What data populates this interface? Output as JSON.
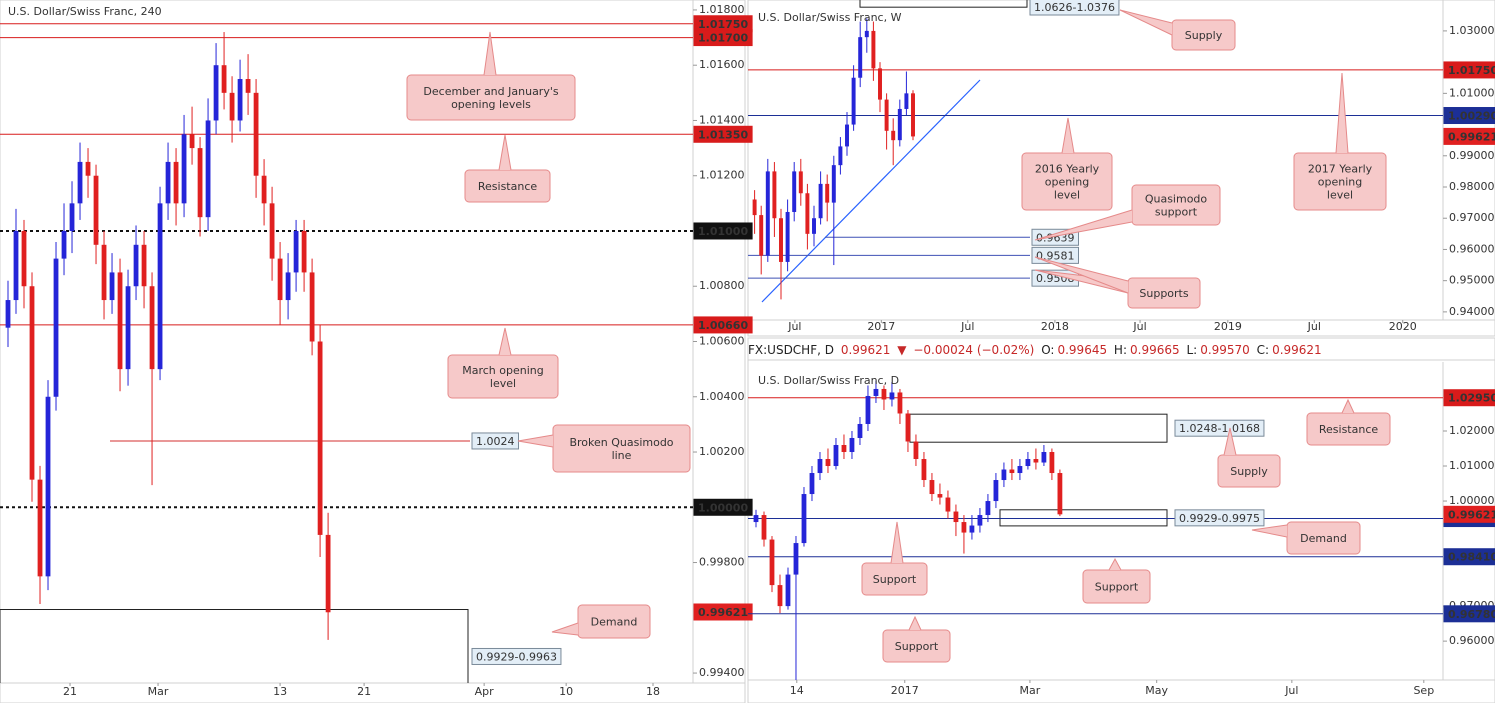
{
  "chart_data": [
    {
      "type": "candlestick",
      "title": "U.S. Dollar/Swiss Franc, 240",
      "up_color": "#2525d8",
      "down_color": "#e02020",
      "xlim": [
        0,
        86.6
      ],
      "xticks": [
        {
          "value": 8.75,
          "label": "21"
        },
        {
          "value": 19.75,
          "label": "Mar"
        },
        {
          "value": 35,
          "label": "13"
        },
        {
          "value": 45.5,
          "label": "21"
        },
        {
          "value": 60.5,
          "label": "Apr"
        },
        {
          "value": 70.75,
          "label": "10"
        },
        {
          "value": 81.6,
          "label": "18"
        }
      ],
      "ylim": [
        0.99364,
        1.01836
      ],
      "yticks": [
        {
          "value": 1.018,
          "label": "1.01800"
        },
        {
          "value": 1.016,
          "label": "1.01600"
        },
        {
          "value": 1.014,
          "label": "1.01400"
        },
        {
          "value": 1.012,
          "label": "1.01200"
        },
        {
          "value": 1.008,
          "label": "1.00800"
        },
        {
          "value": 1.006,
          "label": "1.00600"
        },
        {
          "value": 1.004,
          "label": "1.00400"
        },
        {
          "value": 1.002,
          "label": "1.00200"
        },
        {
          "value": 0.998,
          "label": "0.99800"
        },
        {
          "value": 0.994,
          "label": "0.99400"
        }
      ],
      "open": [
        1.0065,
        1.0075,
        1.01,
        1.008,
        1.001,
        0.9975,
        1.004,
        1.009,
        1.01,
        1.011,
        1.0125,
        1.012,
        1.0095,
        1.0075,
        1.0085,
        1.005,
        1.008,
        1.0095,
        1.008,
        1.005,
        1.011,
        1.0125,
        1.011,
        1.0135,
        1.013,
        1.0105,
        1.014,
        1.016,
        1.015,
        1.014,
        1.0155,
        1.015,
        1.012,
        1.011,
        1.009,
        1.0075,
        1.0085,
        1.01,
        1.0085,
        1.006,
        0.999
      ],
      "high": [
        1.0082,
        1.0108,
        1.0104,
        1.0085,
        1.0015,
        1.0046,
        1.0096,
        1.011,
        1.0118,
        1.0132,
        1.013,
        1.0124,
        1.01,
        1.0092,
        1.009,
        1.0086,
        1.0102,
        1.01,
        1.0085,
        1.0116,
        1.0132,
        1.013,
        1.0142,
        1.0145,
        1.0134,
        1.0148,
        1.0168,
        1.0172,
        1.0156,
        1.0162,
        1.0164,
        1.0155,
        1.0126,
        1.0116,
        1.0096,
        1.0092,
        1.0104,
        1.0104,
        1.009,
        1.0066,
        0.9998
      ],
      "low": [
        1.0058,
        1.007,
        1.0072,
        1.0002,
        0.9965,
        0.997,
        1.0035,
        1.0084,
        1.0092,
        1.0104,
        1.0112,
        1.0088,
        1.0068,
        1.007,
        1.0042,
        1.0044,
        1.0075,
        1.0072,
        1.0008,
        1.0046,
        1.0104,
        1.0102,
        1.0105,
        1.0124,
        1.0098,
        1.01,
        1.0135,
        1.0144,
        1.0132,
        1.0136,
        1.0142,
        1.0112,
        1.0102,
        1.0082,
        1.0066,
        1.0068,
        1.0078,
        1.0078,
        1.0055,
        0.9982,
        0.9952
      ],
      "close": [
        1.0075,
        1.01,
        1.008,
        1.001,
        0.9975,
        1.004,
        1.009,
        1.01,
        1.011,
        1.0125,
        1.012,
        1.0095,
        1.0075,
        1.0085,
        1.005,
        1.008,
        1.0095,
        1.008,
        1.005,
        1.011,
        1.0125,
        1.011,
        1.0135,
        1.013,
        1.0105,
        1.014,
        1.016,
        1.015,
        1.014,
        1.0155,
        1.015,
        1.012,
        1.011,
        1.009,
        1.0075,
        1.0085,
        1.01,
        1.0085,
        1.006,
        0.999,
        0.9962
      ],
      "levels": [
        {
          "value": 1.0175,
          "label": "1.01750",
          "color": "#d81b1b"
        },
        {
          "value": 1.017,
          "label": "1.01700",
          "color": "#d81b1b"
        },
        {
          "value": 1.0135,
          "label": "1.01350",
          "color": "#d81b1b"
        },
        {
          "value": 1.01,
          "label": "1.01000",
          "color": "#111111",
          "style": "dashed"
        },
        {
          "value": 1.0066,
          "label": "1.00660",
          "color": "#d81b1b"
        },
        {
          "value": 1,
          "label": "1.00000",
          "color": "#111111",
          "style": "dashed"
        }
      ],
      "lines": [
        {
          "value": 1.0024,
          "label": "1.0024",
          "color": "#d32f2f"
        }
      ],
      "zones": [
        {
          "low": 0.9929,
          "high": 0.9963,
          "label": "0.9929-0.9963"
        }
      ],
      "price": {
        "value": 0.99621,
        "label": "0.99621",
        "color": "#e02020"
      },
      "annotations": [
        {
          "lines": [
            "December and January's",
            "opening levels"
          ]
        },
        {
          "lines": [
            "Resistance"
          ]
        },
        {
          "lines": [
            "March opening",
            "level"
          ]
        },
        {
          "lines": [
            "Broken Quasimodo",
            "line"
          ]
        },
        {
          "lines": [
            "Demand"
          ]
        }
      ]
    },
    {
      "type": "candlestick",
      "title": "U.S. Dollar/Swiss Franc, W",
      "up_color": "#2525d8",
      "down_color": "#e02020",
      "xlim": [
        0,
        105.3
      ],
      "xticks": [
        {
          "value": 7.1,
          "label": "Jul"
        },
        {
          "value": 20.2,
          "label": "2017"
        },
        {
          "value": 33.3,
          "label": "Jul"
        },
        {
          "value": 46.5,
          "label": "2018"
        },
        {
          "value": 59.4,
          "label": "Jul"
        },
        {
          "value": 72.7,
          "label": "2019"
        },
        {
          "value": 85.8,
          "label": "Jul"
        },
        {
          "value": 99.2,
          "label": "2020"
        }
      ],
      "ylim": [
        0.9374,
        1.0399
      ],
      "yticks": [
        {
          "value": 1.03,
          "label": "1.03000"
        },
        {
          "value": 1.01,
          "label": "1.01000"
        },
        {
          "value": 0.99,
          "label": "0.99000"
        },
        {
          "value": 0.98,
          "label": "0.98000"
        },
        {
          "value": 0.97,
          "label": "0.97000"
        },
        {
          "value": 0.96,
          "label": "0.96000"
        },
        {
          "value": 0.95,
          "label": "0.95000"
        },
        {
          "value": 0.94,
          "label": "0.94000"
        }
      ],
      "open": [
        0.976,
        0.971,
        0.958,
        0.985,
        0.97,
        0.956,
        0.972,
        0.985,
        0.978,
        0.965,
        0.97,
        0.981,
        0.975,
        0.987,
        0.993,
        1.0,
        1.015,
        1.028,
        1.03,
        1.018,
        1.008,
        0.998,
        0.995,
        1.005,
        1.01
      ],
      "high": [
        0.979,
        0.974,
        0.989,
        0.988,
        0.973,
        0.976,
        0.988,
        0.989,
        0.981,
        0.974,
        0.985,
        0.984,
        0.99,
        0.996,
        1.004,
        1.019,
        1.033,
        1.034,
        1.033,
        1.02,
        1.01,
        1.002,
        1.008,
        1.017,
        1.011
      ],
      "low": [
        0.965,
        0.952,
        0.956,
        0.964,
        0.944,
        0.953,
        0.969,
        0.974,
        0.96,
        0.961,
        0.968,
        0.969,
        0.955,
        0.984,
        0.99,
        0.998,
        1.012,
        1.023,
        1.014,
        1.004,
        0.992,
        0.987,
        0.993,
        1.003,
        0.995
      ],
      "close": [
        0.971,
        0.958,
        0.985,
        0.97,
        0.956,
        0.972,
        0.985,
        0.978,
        0.965,
        0.97,
        0.981,
        0.975,
        0.987,
        0.993,
        1.0,
        1.015,
        1.028,
        1.03,
        1.018,
        1.008,
        0.998,
        0.995,
        1.005,
        1.01,
        0.9962
      ],
      "levels": [
        {
          "value": 1.0175,
          "label": "1.01750",
          "color": "#d81b1b"
        },
        {
          "value": 1.0029,
          "label": "1.00290",
          "color": "#1c2f96"
        }
      ],
      "lines": [
        {
          "value": 0.9639,
          "label": "0.9639",
          "color": "#3f51b5"
        },
        {
          "value": 0.9581,
          "label": "0.9581",
          "color": "#3f51b5"
        },
        {
          "value": 0.9508,
          "label": "0.9508",
          "color": "#3f51b5"
        }
      ],
      "zones": [
        {
          "low": 1.0376,
          "high": 1.0626,
          "label": "1.0626-1.0376"
        }
      ],
      "price": {
        "value": 0.99621,
        "label": "0.99621",
        "color": "#e02020"
      },
      "annotations": [
        {
          "lines": [
            "Supply"
          ]
        },
        {
          "lines": [
            "2016 Yearly",
            "opening",
            "level"
          ]
        },
        {
          "lines": [
            "2017 Yearly",
            "opening",
            "level"
          ]
        },
        {
          "lines": [
            "Quasimodo",
            "support"
          ]
        },
        {
          "lines": [
            "Supports"
          ]
        }
      ]
    },
    {
      "type": "candlestick",
      "title": "U.S. Dollar/Swiss Franc, D",
      "header": {
        "symbol": "FX:USDCHF, D",
        "last": "0.99621",
        "arrow": "▼",
        "change": "−0.00024 (−0.02%)",
        "open_label": "O:",
        "open": "0.99645",
        "high_label": "H:",
        "high": "0.99665",
        "low_label": "L:",
        "low": "0.99570",
        "close_label": "C:",
        "close": "0.99621"
      },
      "up_color": "#2525d8",
      "down_color": "#e02020",
      "xlim": [
        0,
        86.9
      ],
      "xticks": [
        {
          "value": 6.1,
          "label": "14"
        },
        {
          "value": 19.6,
          "label": "2017"
        },
        {
          "value": 35.25,
          "label": "Mar"
        },
        {
          "value": 51.1,
          "label": "May"
        },
        {
          "value": 68,
          "label": "Jul"
        },
        {
          "value": 84.5,
          "label": "Sep"
        }
      ],
      "ylim": [
        0.9489,
        1.0397
      ],
      "yticks": [
        {
          "value": 1.02,
          "label": "1.02000"
        },
        {
          "value": 1.01,
          "label": "1.01000"
        },
        {
          "value": 1,
          "label": "1.00000"
        },
        {
          "value": 0.97,
          "label": "0.97000"
        },
        {
          "value": 0.96,
          "label": "0.96000"
        }
      ],
      "open": [
        0.994,
        0.996,
        0.989,
        0.976,
        0.97,
        0.979,
        0.988,
        1.002,
        1.008,
        1.012,
        1.01,
        1.016,
        1.014,
        1.018,
        1.022,
        1.03,
        1.032,
        1.029,
        1.031,
        1.025,
        1.017,
        1.012,
        1.006,
        1.002,
        1.001,
        0.997,
        0.994,
        0.991,
        0.993,
        0.996,
        1.0,
        1.006,
        1.009,
        1.008,
        1.01,
        1.012,
        1.011,
        1.014,
        1.008
      ],
      "high": [
        0.9975,
        0.997,
        0.99,
        0.979,
        0.981,
        0.99,
        1.004,
        1.01,
        1.014,
        1.015,
        1.018,
        1.019,
        1.02,
        1.024,
        1.033,
        1.0344,
        1.033,
        1.034,
        1.032,
        1.026,
        1.019,
        1.014,
        1.008,
        1.005,
        1.003,
        0.999,
        0.996,
        0.996,
        0.998,
        1.002,
        1.008,
        1.011,
        1.012,
        1.012,
        1.014,
        1.015,
        1.016,
        1.015,
        1.009
      ],
      "low": [
        0.9925,
        0.987,
        0.974,
        0.968,
        0.969,
        0.9455,
        0.987,
        1.0,
        1.006,
        1.008,
        1.009,
        1.012,
        1.012,
        1.016,
        1.02,
        1.028,
        1.026,
        1.027,
        1.022,
        1.014,
        1.01,
        1.004,
        1.0,
        0.999,
        0.995,
        0.99,
        0.985,
        0.989,
        0.991,
        0.994,
        0.998,
        1.004,
        1.006,
        1.006,
        1.009,
        1.009,
        1.01,
        1.006,
        0.9957
      ],
      "close": [
        0.996,
        0.989,
        0.976,
        0.97,
        0.979,
        0.988,
        1.002,
        1.008,
        1.012,
        1.01,
        1.016,
        1.014,
        1.018,
        1.022,
        1.03,
        1.032,
        1.029,
        1.031,
        1.025,
        1.017,
        1.012,
        1.006,
        1.002,
        1.001,
        0.997,
        0.994,
        0.991,
        0.993,
        0.996,
        1.0,
        1.006,
        1.009,
        1.008,
        1.01,
        1.012,
        1.011,
        1.014,
        1.008,
        0.9962
      ],
      "levels": [
        {
          "value": 1.0295,
          "label": "1.02950",
          "color": "#d81b1b"
        },
        {
          "value": 0.995,
          "label": "0.99500",
          "color": "#1c2f96"
        },
        {
          "value": 0.9841,
          "label": "0.98410",
          "color": "#1c2f96"
        },
        {
          "value": 0.9678,
          "label": "0.96780",
          "color": "#1c2f96"
        }
      ],
      "lines": [],
      "zones": [
        {
          "low": 1.0168,
          "high": 1.0248,
          "label": "1.0248-1.0168"
        },
        {
          "low": 0.9929,
          "high": 0.9975,
          "label": "0.9929-0.9975"
        }
      ],
      "price": {
        "value": 0.99621,
        "label": "0.99621",
        "color": "#e02020"
      },
      "annotations": [
        {
          "lines": [
            "Resistance"
          ]
        },
        {
          "lines": [
            "Supply"
          ]
        },
        {
          "lines": [
            "Demand"
          ]
        },
        {
          "lines": [
            "Support"
          ]
        },
        {
          "lines": [
            "Support"
          ]
        },
        {
          "lines": [
            "Support"
          ]
        }
      ]
    }
  ]
}
